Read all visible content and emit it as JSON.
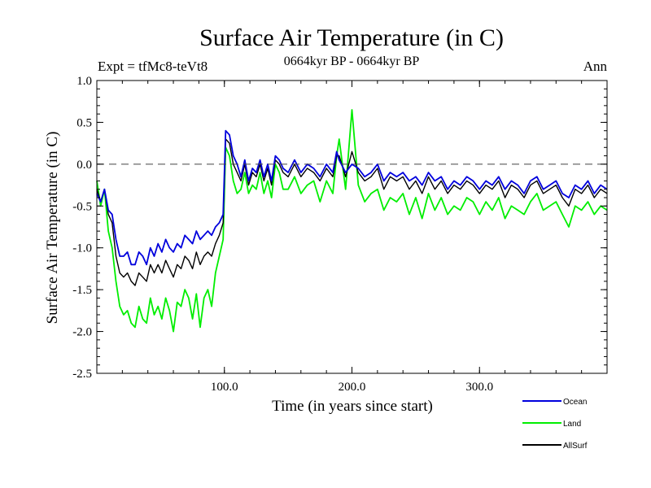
{
  "chart_data": {
    "type": "line",
    "title": "Surface Air Temperature (in C)",
    "subtitle": "0664kyr BP - 0664kyr BP",
    "annotation_left": "Expt = tfMc8-teVt8",
    "annotation_right": "Ann",
    "xlabel": "Time (in years since start)",
    "ylabel": "Surface Air Temperature (in C)",
    "xlim": [
      0,
      400
    ],
    "ylim": [
      -2.5,
      1.0
    ],
    "xticks": [
      100,
      200,
      300
    ],
    "xtick_labels": [
      "100.0",
      "200.0",
      "300.0"
    ],
    "yticks": [
      1.0,
      0.5,
      0.0,
      -0.5,
      -1.0,
      -1.5,
      -2.0,
      -2.5
    ],
    "ytick_labels": [
      "1.0",
      "0.5",
      "0.0",
      "-0.5",
      "-1.0",
      "-1.5",
      "-2.0",
      "-2.5"
    ],
    "reference_line": 0.0,
    "legend_position": "bottom-right, outside plot",
    "series": [
      {
        "name": "Ocean",
        "color": "#0000dd",
        "x": [
          0,
          3,
          6,
          9,
          12,
          15,
          18,
          21,
          24,
          27,
          30,
          33,
          36,
          39,
          42,
          45,
          48,
          51,
          54,
          57,
          60,
          63,
          66,
          69,
          72,
          75,
          78,
          81,
          84,
          87,
          90,
          93,
          96,
          99,
          101,
          104,
          107,
          110,
          113,
          116,
          119,
          122,
          125,
          128,
          131,
          134,
          137,
          140,
          143,
          146,
          150,
          155,
          160,
          165,
          170,
          175,
          180,
          185,
          188,
          190,
          195,
          200,
          205,
          210,
          215,
          220,
          225,
          230,
          235,
          240,
          245,
          250,
          255,
          260,
          265,
          270,
          275,
          280,
          285,
          290,
          295,
          300,
          305,
          310,
          315,
          320,
          325,
          330,
          335,
          340,
          345,
          350,
          355,
          360,
          365,
          370,
          375,
          380,
          385,
          390,
          395,
          400
        ],
        "y": [
          -0.35,
          -0.45,
          -0.3,
          -0.55,
          -0.6,
          -0.9,
          -1.1,
          -1.1,
          -1.05,
          -1.2,
          -1.2,
          -1.05,
          -1.1,
          -1.2,
          -1.0,
          -1.1,
          -0.95,
          -1.05,
          -0.9,
          -1.0,
          -1.05,
          -0.95,
          -1.0,
          -0.85,
          -0.9,
          -0.95,
          -0.8,
          -0.9,
          -0.85,
          -0.8,
          -0.85,
          -0.75,
          -0.7,
          -0.6,
          0.4,
          0.35,
          0.1,
          0.0,
          -0.15,
          0.05,
          -0.2,
          -0.05,
          -0.1,
          0.05,
          -0.15,
          0.0,
          -0.2,
          0.1,
          0.05,
          -0.05,
          -0.1,
          0.05,
          -0.1,
          0.0,
          -0.05,
          -0.15,
          0.0,
          -0.1,
          0.15,
          0.05,
          -0.1,
          0.0,
          -0.05,
          -0.15,
          -0.1,
          0.0,
          -0.2,
          -0.1,
          -0.15,
          -0.1,
          -0.2,
          -0.15,
          -0.25,
          -0.1,
          -0.2,
          -0.15,
          -0.3,
          -0.2,
          -0.25,
          -0.15,
          -0.2,
          -0.3,
          -0.2,
          -0.25,
          -0.15,
          -0.3,
          -0.2,
          -0.25,
          -0.35,
          -0.2,
          -0.15,
          -0.3,
          -0.25,
          -0.2,
          -0.35,
          -0.4,
          -0.25,
          -0.3,
          -0.2,
          -0.35,
          -0.25,
          -0.3
        ]
      },
      {
        "name": "Land",
        "color": "#00ee00",
        "x": [
          0,
          3,
          6,
          9,
          12,
          15,
          18,
          21,
          24,
          27,
          30,
          33,
          36,
          39,
          42,
          45,
          48,
          51,
          54,
          57,
          60,
          63,
          66,
          69,
          72,
          75,
          78,
          81,
          84,
          87,
          90,
          93,
          96,
          99,
          101,
          104,
          107,
          110,
          113,
          116,
          119,
          122,
          125,
          128,
          131,
          134,
          137,
          140,
          143,
          146,
          150,
          155,
          160,
          165,
          170,
          175,
          180,
          185,
          188,
          190,
          195,
          200,
          205,
          210,
          215,
          220,
          225,
          230,
          235,
          240,
          245,
          250,
          255,
          260,
          265,
          270,
          275,
          280,
          285,
          290,
          295,
          300,
          305,
          310,
          315,
          320,
          325,
          330,
          335,
          340,
          345,
          350,
          355,
          360,
          365,
          370,
          375,
          380,
          385,
          390,
          395,
          400
        ],
        "y": [
          -0.2,
          -0.5,
          -0.3,
          -0.8,
          -1.0,
          -1.4,
          -1.7,
          -1.8,
          -1.75,
          -1.9,
          -1.95,
          -1.7,
          -1.85,
          -1.9,
          -1.6,
          -1.8,
          -1.7,
          -1.85,
          -1.6,
          -1.75,
          -2.0,
          -1.65,
          -1.7,
          -1.5,
          -1.6,
          -1.85,
          -1.55,
          -1.95,
          -1.6,
          -1.5,
          -1.7,
          -1.3,
          -1.1,
          -0.9,
          0.2,
          0.1,
          -0.2,
          -0.35,
          -0.3,
          -0.1,
          -0.35,
          -0.25,
          -0.3,
          -0.1,
          -0.35,
          -0.2,
          -0.4,
          0.0,
          -0.1,
          -0.3,
          -0.3,
          -0.15,
          -0.35,
          -0.25,
          -0.2,
          -0.45,
          -0.2,
          -0.35,
          0.1,
          0.3,
          -0.3,
          0.65,
          -0.25,
          -0.45,
          -0.35,
          -0.3,
          -0.55,
          -0.4,
          -0.45,
          -0.35,
          -0.6,
          -0.4,
          -0.65,
          -0.35,
          -0.55,
          -0.4,
          -0.6,
          -0.5,
          -0.55,
          -0.4,
          -0.45,
          -0.6,
          -0.45,
          -0.55,
          -0.4,
          -0.65,
          -0.5,
          -0.55,
          -0.6,
          -0.45,
          -0.35,
          -0.55,
          -0.5,
          -0.45,
          -0.6,
          -0.75,
          -0.5,
          -0.55,
          -0.45,
          -0.6,
          -0.5,
          -0.55
        ]
      },
      {
        "name": "AllSurf",
        "color": "#000000",
        "x": [
          0,
          3,
          6,
          9,
          12,
          15,
          18,
          21,
          24,
          27,
          30,
          33,
          36,
          39,
          42,
          45,
          48,
          51,
          54,
          57,
          60,
          63,
          66,
          69,
          72,
          75,
          78,
          81,
          84,
          87,
          90,
          93,
          96,
          99,
          101,
          104,
          107,
          110,
          113,
          116,
          119,
          122,
          125,
          128,
          131,
          134,
          137,
          140,
          143,
          146,
          150,
          155,
          160,
          165,
          170,
          175,
          180,
          185,
          188,
          190,
          195,
          200,
          205,
          210,
          215,
          220,
          225,
          230,
          235,
          240,
          245,
          250,
          255,
          260,
          265,
          270,
          275,
          280,
          285,
          290,
          295,
          300,
          305,
          310,
          315,
          320,
          325,
          330,
          335,
          340,
          345,
          350,
          355,
          360,
          365,
          370,
          375,
          380,
          385,
          390,
          395,
          400
        ],
        "y": [
          -0.3,
          -0.45,
          -0.3,
          -0.6,
          -0.7,
          -1.1,
          -1.3,
          -1.35,
          -1.3,
          -1.4,
          -1.45,
          -1.3,
          -1.35,
          -1.4,
          -1.2,
          -1.3,
          -1.2,
          -1.3,
          -1.15,
          -1.25,
          -1.35,
          -1.2,
          -1.25,
          -1.1,
          -1.15,
          -1.25,
          -1.05,
          -1.2,
          -1.1,
          -1.05,
          -1.1,
          -0.95,
          -0.85,
          -0.7,
          0.3,
          0.25,
          0.0,
          -0.1,
          -0.2,
          0.0,
          -0.25,
          -0.1,
          -0.15,
          0.0,
          -0.2,
          -0.05,
          -0.25,
          0.05,
          0.0,
          -0.1,
          -0.15,
          0.0,
          -0.15,
          -0.05,
          -0.1,
          -0.2,
          -0.05,
          -0.15,
          0.1,
          0.1,
          -0.15,
          0.15,
          -0.1,
          -0.2,
          -0.15,
          -0.05,
          -0.3,
          -0.15,
          -0.2,
          -0.15,
          -0.3,
          -0.2,
          -0.35,
          -0.15,
          -0.3,
          -0.2,
          -0.35,
          -0.25,
          -0.3,
          -0.2,
          -0.25,
          -0.35,
          -0.25,
          -0.3,
          -0.2,
          -0.4,
          -0.25,
          -0.3,
          -0.4,
          -0.25,
          -0.2,
          -0.35,
          -0.3,
          -0.25,
          -0.4,
          -0.5,
          -0.3,
          -0.35,
          -0.25,
          -0.4,
          -0.3,
          -0.35
        ]
      }
    ]
  }
}
